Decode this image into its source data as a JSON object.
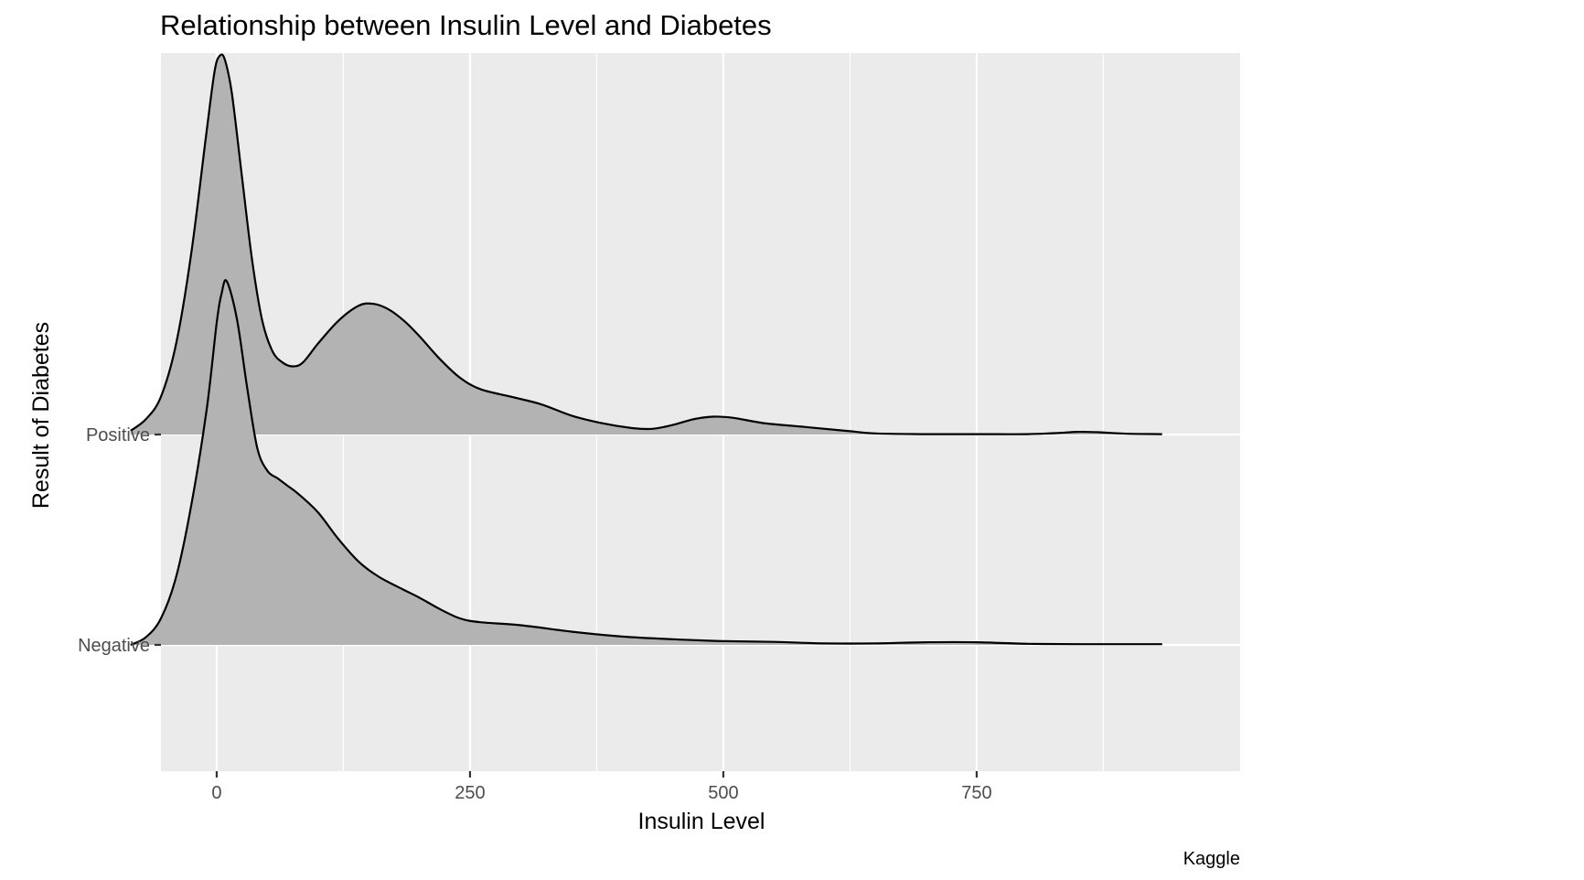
{
  "chart_data": {
    "type": "ridgeline",
    "title": "Relationship between Insulin Level and Diabetes",
    "xlabel": "Insulin Level",
    "ylabel": "Result of Diabetes",
    "caption": "Kaggle",
    "xlim": [
      -55,
      1010
    ],
    "x_ticks": [
      0,
      250,
      500,
      750
    ],
    "x_minor_ticks": [
      -125,
      125,
      375,
      625,
      875
    ],
    "categories": [
      "Negative",
      "Positive"
    ],
    "grid": true,
    "panel_background": "#ebebeb",
    "fill_color": "#b3b3b3",
    "series": [
      {
        "name": "Negative",
        "points": [
          [
            -85,
            0.0
          ],
          [
            -70,
            0.02
          ],
          [
            -55,
            0.07
          ],
          [
            -40,
            0.18
          ],
          [
            -25,
            0.37
          ],
          [
            -10,
            0.62
          ],
          [
            0,
            0.85
          ],
          [
            5,
            0.93
          ],
          [
            10,
            0.96
          ],
          [
            20,
            0.86
          ],
          [
            30,
            0.68
          ],
          [
            40,
            0.52
          ],
          [
            50,
            0.46
          ],
          [
            60,
            0.44
          ],
          [
            70,
            0.42
          ],
          [
            80,
            0.4
          ],
          [
            100,
            0.35
          ],
          [
            120,
            0.28
          ],
          [
            140,
            0.22
          ],
          [
            160,
            0.18
          ],
          [
            185,
            0.145
          ],
          [
            200,
            0.125
          ],
          [
            220,
            0.095
          ],
          [
            240,
            0.07
          ],
          [
            260,
            0.06
          ],
          [
            300,
            0.052
          ],
          [
            350,
            0.035
          ],
          [
            400,
            0.022
          ],
          [
            450,
            0.015
          ],
          [
            500,
            0.01
          ],
          [
            550,
            0.008
          ],
          [
            600,
            0.004
          ],
          [
            650,
            0.004
          ],
          [
            700,
            0.007
          ],
          [
            750,
            0.007
          ],
          [
            800,
            0.003
          ],
          [
            850,
            0.002
          ],
          [
            933,
            0.002
          ]
        ]
      },
      {
        "name": "Positive",
        "points": [
          [
            -85,
            0.01
          ],
          [
            -70,
            0.04
          ],
          [
            -55,
            0.1
          ],
          [
            -40,
            0.24
          ],
          [
            -25,
            0.48
          ],
          [
            -10,
            0.8
          ],
          [
            -2,
            0.96
          ],
          [
            3,
            1.0
          ],
          [
            8,
            0.99
          ],
          [
            15,
            0.9
          ],
          [
            25,
            0.68
          ],
          [
            35,
            0.46
          ],
          [
            45,
            0.3
          ],
          [
            55,
            0.22
          ],
          [
            65,
            0.19
          ],
          [
            75,
            0.18
          ],
          [
            85,
            0.19
          ],
          [
            100,
            0.24
          ],
          [
            120,
            0.3
          ],
          [
            140,
            0.34
          ],
          [
            155,
            0.345
          ],
          [
            170,
            0.33
          ],
          [
            185,
            0.3
          ],
          [
            200,
            0.26
          ],
          [
            220,
            0.2
          ],
          [
            240,
            0.15
          ],
          [
            260,
            0.12
          ],
          [
            290,
            0.1
          ],
          [
            320,
            0.08
          ],
          [
            350,
            0.05
          ],
          [
            380,
            0.03
          ],
          [
            410,
            0.017
          ],
          [
            430,
            0.015
          ],
          [
            450,
            0.025
          ],
          [
            470,
            0.04
          ],
          [
            490,
            0.047
          ],
          [
            510,
            0.044
          ],
          [
            540,
            0.03
          ],
          [
            580,
            0.02
          ],
          [
            620,
            0.01
          ],
          [
            650,
            0.003
          ],
          [
            700,
            0.001
          ],
          [
            750,
            0.001
          ],
          [
            800,
            0.001
          ],
          [
            830,
            0.004
          ],
          [
            850,
            0.007
          ],
          [
            870,
            0.006
          ],
          [
            900,
            0.002
          ],
          [
            933,
            0.001
          ]
        ]
      }
    ]
  }
}
